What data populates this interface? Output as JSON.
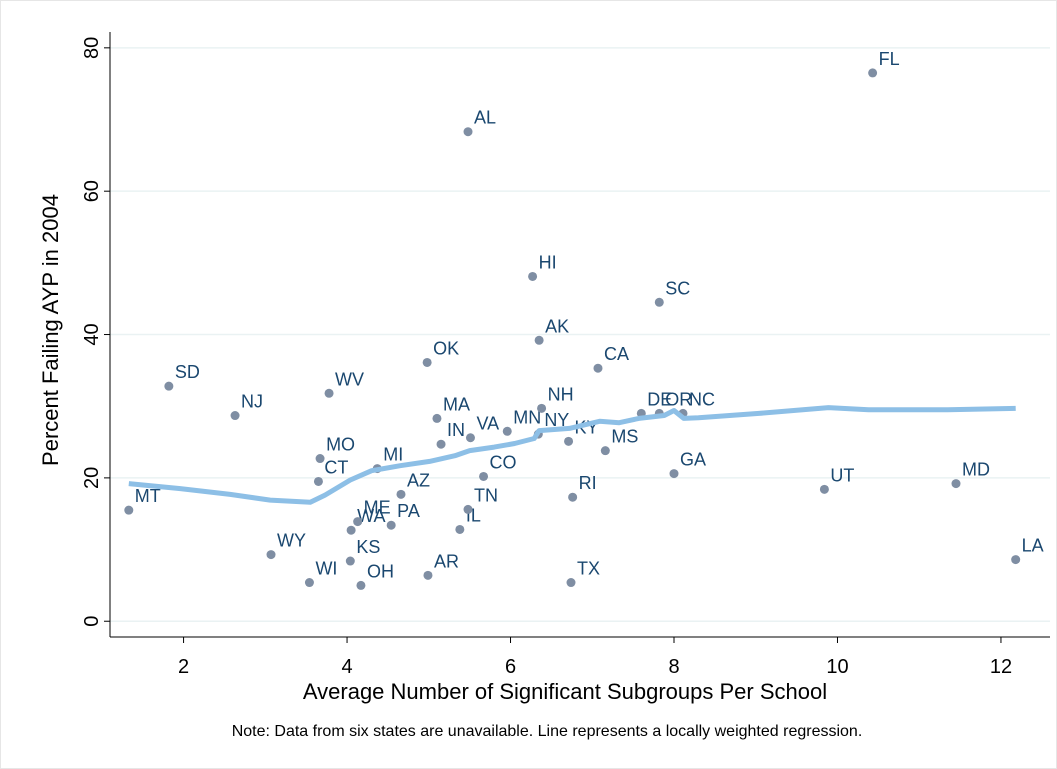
{
  "chart_data": {
    "type": "scatter",
    "x_label": "Average Number of Significant Subgroups Per School",
    "y_label": "Percent Failing AYP in 2004",
    "note": "Note: Data from six states are unavailable. Line represents a locally weighted regression.",
    "xlim": [
      1.1,
      12.6
    ],
    "ylim": [
      -2.2,
      85
    ],
    "xticks": [
      2,
      4,
      6,
      8,
      10,
      12
    ],
    "yticks": [
      0,
      20,
      40,
      60,
      80
    ],
    "grid": true,
    "series": [
      {
        "type": "scatter",
        "color": "#7f8ea3",
        "label_color": "#1a476f",
        "labels": [
          "MT",
          "SD",
          "NJ",
          "WY",
          "WV",
          "MO",
          "CT",
          "WI",
          "KS",
          "WA",
          "ME",
          "MI",
          "OH",
          "PA",
          "AZ",
          "MA",
          "IN",
          "OK",
          "AR",
          "VA",
          "IL",
          "TN",
          "CO",
          "AL",
          "MN",
          "NY",
          "HI",
          "AK",
          "NH",
          "KY",
          "RI",
          "TX",
          "CA",
          "MS",
          "DE",
          "OR",
          "NC",
          "SC",
          "GA",
          "UT",
          "MD",
          "FL",
          "LA"
        ],
        "x": [
          1.33,
          1.82,
          2.63,
          3.07,
          3.78,
          3.67,
          3.65,
          3.54,
          4.04,
          4.05,
          4.13,
          4.37,
          4.17,
          4.54,
          4.66,
          5.1,
          5.15,
          4.98,
          4.99,
          5.51,
          5.38,
          5.48,
          5.67,
          5.48,
          5.96,
          6.34,
          6.27,
          6.35,
          6.38,
          6.71,
          6.76,
          6.74,
          7.07,
          7.16,
          7.6,
          7.82,
          8.11,
          7.82,
          8.0,
          9.84,
          11.45,
          10.43,
          12.18
        ],
        "values": [
          15.5,
          32.8,
          28.7,
          9.3,
          31.8,
          22.7,
          19.5,
          5.4,
          8.4,
          12.7,
          13.9,
          21.3,
          5.0,
          13.4,
          17.7,
          28.3,
          24.7,
          36.1,
          6.4,
          25.6,
          12.8,
          15.6,
          20.2,
          68.3,
          26.5,
          26.1,
          48.1,
          39.2,
          29.7,
          25.1,
          17.3,
          5.4,
          35.3,
          23.8,
          29.0,
          29.0,
          29.0,
          44.5,
          20.6,
          18.4,
          19.2,
          76.5,
          8.6
        ]
      },
      {
        "type": "line",
        "color": "#8dbfe6",
        "x": [
          1.33,
          1.96,
          2.57,
          3.06,
          3.55,
          3.73,
          4.04,
          4.3,
          4.65,
          5.01,
          5.32,
          5.5,
          5.8,
          6.05,
          6.29,
          6.35,
          6.72,
          7.09,
          7.33,
          7.57,
          7.88,
          8.0,
          8.12,
          8.3,
          9.04,
          9.89,
          10.38,
          11.35,
          12.18
        ],
        "values": [
          19.2,
          18.5,
          17.7,
          16.9,
          16.6,
          17.6,
          19.7,
          21.0,
          21.7,
          22.3,
          23.1,
          23.8,
          24.3,
          24.8,
          25.5,
          26.6,
          26.9,
          27.9,
          27.7,
          28.3,
          28.7,
          29.4,
          28.3,
          28.4,
          29.0,
          29.8,
          29.5,
          29.5,
          29.7
        ]
      }
    ]
  }
}
